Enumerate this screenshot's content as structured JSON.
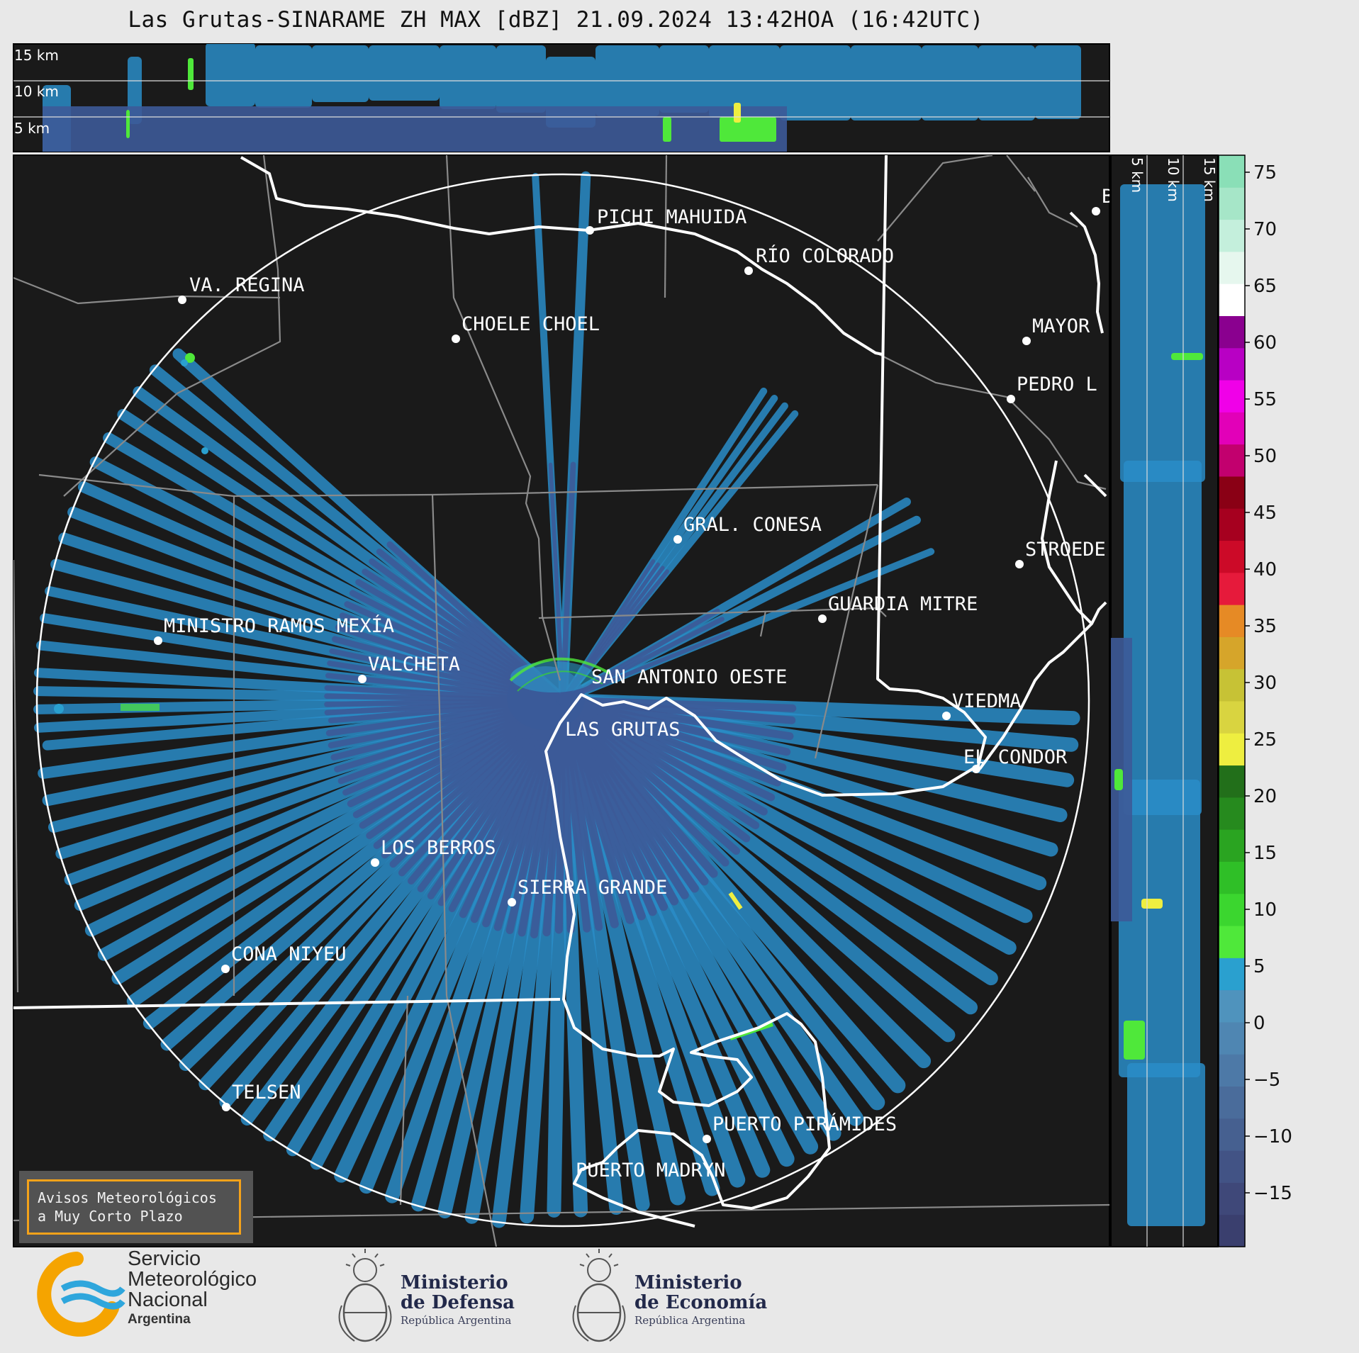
{
  "title": "Las Grutas-SINARAME ZH MAX [dBZ] 21.09.2024 13:42HOA (16:42UTC)",
  "top_profile": {
    "labels": [
      "15 km",
      "10 km",
      "5 km"
    ]
  },
  "side_profile": {
    "labels": [
      "5 km",
      "10 km",
      "15 km"
    ]
  },
  "colorbar": {
    "ticks": [
      "75",
      "70",
      "65",
      "60",
      "55",
      "50",
      "45",
      "40",
      "35",
      "30",
      "25",
      "20",
      "15",
      "10",
      "5",
      "0",
      "−5",
      "−10",
      "−15"
    ],
    "colors": [
      "#3a3f6e",
      "#3f4879",
      "#425385",
      "#466090",
      "#4a6c9b",
      "#4d79a7",
      "#4f86b2",
      "#4f93bd",
      "#2aa0cf",
      "#4fe83a",
      "#3bd62f",
      "#2fbf27",
      "#2aa421",
      "#268a1e",
      "#226f1a",
      "#eeee40",
      "#d9d440",
      "#c7c235",
      "#d6a52a",
      "#e68a25",
      "#e61a3b",
      "#cc0a28",
      "#a6001f",
      "#8a0015",
      "#c2006e",
      "#e200b8",
      "#f000e8",
      "#b800c4",
      "#8a008f",
      "#ffffff",
      "#e6f7ee",
      "#c4efdc",
      "#a6e6c8",
      "#8adfb7"
    ]
  },
  "map": {
    "center_label": "LAS GRUTAS",
    "cities": [
      {
        "name": "PICHI MAHUIDA"
      },
      {
        "name": "RÍO COLORADO"
      },
      {
        "name": "VA. REGINA"
      },
      {
        "name": "CHOELE CHOEL"
      },
      {
        "name": "MAYOR"
      },
      {
        "name": "PEDRO L"
      },
      {
        "name": "GRAL. CONESA"
      },
      {
        "name": "STROEDE"
      },
      {
        "name": "GUARDIA MITRE"
      },
      {
        "name": "MINISTRO RAMOS MEXÍA"
      },
      {
        "name": "VALCHETA"
      },
      {
        "name": "SAN ANTONIO OESTE"
      },
      {
        "name": "LAS GRUTAS"
      },
      {
        "name": "VIEDMA"
      },
      {
        "name": "EL CONDOR"
      },
      {
        "name": "LOS BERROS"
      },
      {
        "name": "SIERRA GRANDE"
      },
      {
        "name": "CONA NIYEU"
      },
      {
        "name": "TELSEN"
      },
      {
        "name": "PUERTO PIRÁMIDES"
      },
      {
        "name": "PUERTO MADRYN"
      },
      {
        "name": "B"
      }
    ]
  },
  "aviso": {
    "line1": "Avisos Meteorológicos",
    "line2": "a Muy Corto Plazo"
  },
  "footer": {
    "smn": {
      "line1": "Servicio",
      "line2": "Meteorológico",
      "line3": "Nacional",
      "line4": "Argentina"
    },
    "defensa": {
      "line1": "Ministerio",
      "line2": "de Defensa",
      "line3": "República Argentina"
    },
    "economia": {
      "line1": "Ministerio",
      "line2": "de Economía",
      "line3": "República Argentina"
    }
  }
}
